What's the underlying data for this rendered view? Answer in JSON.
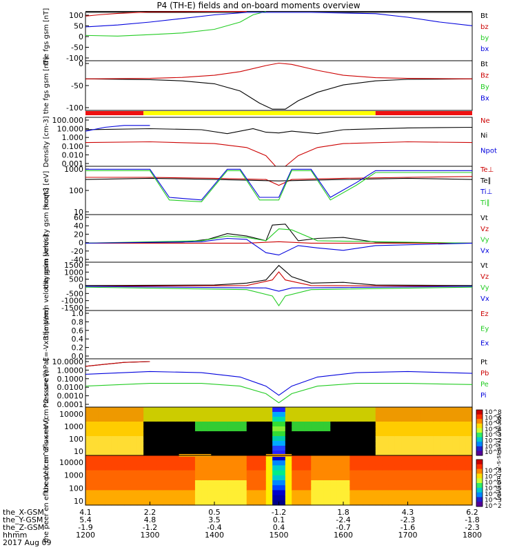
{
  "title": "P4 (TH-E) fields and on-board moments overview",
  "date": "2017 Aug 09",
  "colors": {
    "black": "#000000",
    "red": "#cc0000",
    "green": "#22cc22",
    "blue": "#0000dd"
  },
  "chart_data": {
    "type": "line",
    "x_time_labels": [
      "1200",
      "1300",
      "1400",
      "1500",
      "1600",
      "1700",
      "1800"
    ],
    "x_tick_rows": [
      {
        "name": "the_X-GSM",
        "values": [
          "4.1",
          "2.2",
          "0.5",
          "-1.2",
          "1.8",
          "4.3",
          "6.2"
        ]
      },
      {
        "name": "the_Y-GSM",
        "values": [
          "5.4",
          "4.8",
          "3.5",
          "0.1",
          "-2.4",
          "-2.3",
          "-1.8"
        ]
      },
      {
        "name": "the_Z-GSM",
        "values": [
          "-1.9",
          "-1.2",
          "-0.4",
          "0.4",
          "-0.7",
          "-1.6",
          "-2.3"
        ]
      },
      {
        "name": "hhmm",
        "values": [
          "1200",
          "1300",
          "1400",
          "1500",
          "1600",
          "1700",
          "1800"
        ]
      }
    ],
    "panels": [
      {
        "ylabel": "the fgs gsm [nT]",
        "yticks": [
          "100",
          "50",
          "0",
          "-50",
          "-100"
        ],
        "legend": [
          {
            "text": "Bt",
            "color": "#000000"
          },
          {
            "text": "bz",
            "color": "#cc0000"
          },
          {
            "text": "by",
            "color": "#22cc22"
          },
          {
            "text": "bx",
            "color": "#0000dd"
          }
        ],
        "series": [
          {
            "name": "Bt",
            "color": "#000000",
            "x": [
              1200,
              1300,
              1400,
              1450,
              1500,
              1550,
              1600,
              1700,
              1800
            ],
            "y": [
              104,
              104,
              104,
              104,
              104,
              104,
              104,
              104,
              104
            ]
          },
          {
            "name": "bz",
            "color": "#cc0000",
            "x": [
              1200,
              1220,
              1250,
              1300,
              1400,
              1450
            ],
            "y": [
              85,
              90,
              96,
              102,
              104,
              104
            ]
          },
          {
            "name": "by",
            "color": "#22cc22",
            "x": [
              1200,
              1250,
              1300,
              1350,
              1400,
              1440,
              1460,
              1480
            ],
            "y": [
              5,
              2,
              8,
              15,
              30,
              60,
              90,
              104
            ]
          },
          {
            "name": "bx",
            "color": "#0000dd",
            "x": [
              1200,
              1250,
              1300,
              1350,
              1400,
              1450,
              1550,
              1650,
              1700,
              1750,
              1800
            ],
            "y": [
              40,
              48,
              60,
              75,
              90,
              100,
              100,
              95,
              80,
              60,
              45
            ]
          }
        ]
      },
      {
        "ylabel": "the fgs gsm [nT]",
        "yticks": [
          "0",
          "-50",
          "-100"
        ],
        "legend": [
          {
            "text": "Bt",
            "color": "#000000"
          },
          {
            "text": "Bz",
            "color": "#cc0000"
          },
          {
            "text": "By",
            "color": "#22cc22"
          },
          {
            "text": "Bx",
            "color": "#0000dd"
          }
        ],
        "series": [
          {
            "name": "Bt",
            "color": "#000000",
            "x": [
              1200,
              1300,
              1350,
              1400,
              1440,
              1470,
              1490,
              1510,
              1530,
              1560,
              1600,
              1650,
              1700,
              1800
            ],
            "y": [
              0,
              -3,
              -8,
              -20,
              -50,
              -100,
              -125,
              -125,
              -90,
              -55,
              -25,
              -8,
              -2,
              0
            ]
          },
          {
            "name": "Bz",
            "color": "#cc0000",
            "x": [
              1200,
              1300,
              1350,
              1400,
              1440,
              1480,
              1500,
              1520,
              1560,
              1600,
              1650,
              1700,
              1800
            ],
            "y": [
              0,
              2,
              6,
              15,
              30,
              55,
              65,
              60,
              35,
              15,
              5,
              2,
              0
            ]
          }
        ]
      },
      {
        "ylabel": "Density [cm-3]",
        "yticks": [
          "100.000",
          "10.000",
          "1.000",
          "0.100",
          "0.010",
          "0.001"
        ],
        "ylog": true,
        "legend": [
          {
            "text": "Ne",
            "color": "#cc0000"
          },
          {
            "text": "Ni",
            "color": "#000000"
          },
          {
            "text": "Npot",
            "color": "#0000dd"
          }
        ],
        "series": [
          {
            "name": "Ne",
            "color": "#cc0000",
            "x": [
              1200,
              1300,
              1400,
              1450,
              1480,
              1495,
              1510,
              1530,
              1560,
              1600,
              1700,
              1800
            ],
            "y": [
              0.8,
              1.0,
              0.6,
              0.2,
              0.02,
              0.001,
              0.001,
              0.02,
              0.2,
              0.6,
              1.0,
              0.8
            ]
          },
          {
            "name": "Ni",
            "color": "#000000",
            "x": [
              1200,
              1300,
              1380,
              1420,
              1460,
              1480,
              1500,
              1520,
              1560,
              1600,
              1700,
              1800
            ],
            "y": [
              30,
              40,
              30,
              10,
              40,
              15,
              12,
              20,
              10,
              30,
              50,
              60
            ]
          },
          {
            "name": "Npot",
            "color": "#0000dd",
            "x": [
              1200,
              1230,
              1260,
              1300
            ],
            "y": [
              20,
              60,
              100,
              100
            ]
          }
        ]
      },
      {
        "ylabel": "moqt3 [eV]",
        "yticks": [
          "1000",
          "100",
          "10"
        ],
        "ylog": true,
        "legend": [
          {
            "text": "Te⊥",
            "color": "#cc0000"
          },
          {
            "text": "Te∥",
            "color": "#000000"
          },
          {
            "text": "Ti⊥",
            "color": "#0000dd"
          },
          {
            "text": "Ti∥",
            "color": "#22cc22"
          }
        ],
        "series": [
          {
            "name": "Te⊥",
            "color": "#cc0000",
            "x": [
              1200,
              1300,
              1400,
              1480,
              1500,
              1520,
              1600,
              1700,
              1800
            ],
            "y": [
              700,
              700,
              600,
              500,
              200,
              500,
              600,
              700,
              800
            ]
          },
          {
            "name": "Te∥",
            "color": "#000000",
            "x": [
              1200,
              1300,
              1400,
              1500,
              1600,
              1700,
              1800
            ],
            "y": [
              500,
              600,
              500,
              400,
              500,
              600,
              500
            ]
          },
          {
            "name": "Ti⊥",
            "color": "#0000dd",
            "x": [
              1200,
              1270,
              1300,
              1330,
              1380,
              1420,
              1440,
              1470,
              1500,
              1520,
              1550,
              1580,
              1620,
              1650,
              1800
            ],
            "y": [
              2500,
              2500,
              2500,
              30,
              20,
              2500,
              2500,
              30,
              30,
              2500,
              2500,
              30,
              300,
              2000,
              2000
            ]
          },
          {
            "name": "Ti∥",
            "color": "#22cc22",
            "x": [
              1200,
              1270,
              1300,
              1330,
              1380,
              1420,
              1440,
              1470,
              1500,
              1520,
              1550,
              1580,
              1620,
              1650,
              1800
            ],
            "y": [
              2000,
              2000,
              2000,
              20,
              15,
              2000,
              2000,
              20,
              20,
              2000,
              2000,
              20,
              200,
              1500,
              1500
            ]
          }
        ]
      },
      {
        "ylabel": "the peim velocity gsm [km/s]",
        "yticks": [
          "60",
          "40",
          "20",
          "0",
          "-20",
          "-40"
        ],
        "legend": [
          {
            "text": "Vt",
            "color": "#000000"
          },
          {
            "text": "Vz",
            "color": "#cc0000"
          },
          {
            "text": "Vy",
            "color": "#22cc22"
          },
          {
            "text": "Vx",
            "color": "#0000dd"
          }
        ],
        "series": [
          {
            "name": "Vt",
            "color": "#000000",
            "x": [
              1200,
              1350,
              1390,
              1420,
              1450,
              1480,
              1490,
              1510,
              1530,
              1560,
              1600,
              1650,
              1800
            ],
            "y": [
              0,
              2,
              8,
              20,
              15,
              5,
              38,
              40,
              5,
              10,
              12,
              2,
              0
            ]
          },
          {
            "name": "Vz",
            "color": "#cc0000",
            "x": [
              1200,
              1450,
              1500,
              1550,
              1800
            ],
            "y": [
              0,
              0,
              3,
              0,
              0
            ]
          },
          {
            "name": "Vy",
            "color": "#22cc22",
            "x": [
              1200,
              1380,
              1420,
              1450,
              1480,
              1500,
              1520,
              1560,
              1800
            ],
            "y": [
              0,
              5,
              15,
              12,
              5,
              30,
              28,
              5,
              0
            ]
          },
          {
            "name": "Vx",
            "color": "#0000dd",
            "x": [
              1200,
              1380,
              1420,
              1450,
              1480,
              1500,
              1530,
              1560,
              1600,
              1650,
              1800
            ],
            "y": [
              0,
              3,
              10,
              8,
              -20,
              -25,
              -5,
              -10,
              -15,
              -5,
              0
            ]
          }
        ]
      },
      {
        "ylabel": "the peem velocity gsm [km/s]",
        "yticks": [
          "1500",
          "1000",
          "500",
          "0",
          "-500",
          "-1000",
          "-1500"
        ],
        "legend": [
          {
            "text": "Vt",
            "color": "#000000"
          },
          {
            "text": "Vz",
            "color": "#cc0000"
          },
          {
            "text": "Vy",
            "color": "#22cc22"
          },
          {
            "text": "Vx",
            "color": "#0000dd"
          }
        ],
        "series": [
          {
            "name": "Vt",
            "color": "#000000",
            "x": [
              1200,
              1400,
              1450,
              1480,
              1500,
              1520,
              1550,
              1600,
              1650,
              1800
            ],
            "y": [
              50,
              80,
              200,
              400,
              1300,
              600,
              200,
              250,
              80,
              50
            ]
          },
          {
            "name": "Vz",
            "color": "#cc0000",
            "x": [
              1200,
              1450,
              1490,
              1500,
              1510,
              1550,
              1800
            ],
            "y": [
              0,
              50,
              400,
              900,
              400,
              50,
              0
            ]
          },
          {
            "name": "Vy",
            "color": "#22cc22",
            "x": [
              1200,
              1450,
              1490,
              1500,
              1510,
              1550,
              1800
            ],
            "y": [
              -50,
              -200,
              -600,
              -1200,
              -600,
              -200,
              -50
            ]
          },
          {
            "name": "Vx",
            "color": "#0000dd",
            "x": [
              1200,
              1480,
              1500,
              1520,
              1800
            ],
            "y": [
              0,
              -100,
              -300,
              -100,
              0
            ]
          }
        ]
      },
      {
        "ylabel": "E=-VxB [mV/m]",
        "yticks": [
          "1.0",
          "0.8",
          "0.6",
          "0.4",
          "0.2",
          "0.0"
        ],
        "legend": [
          {
            "text": "Ez",
            "color": "#cc0000"
          },
          {
            "text": "Ey",
            "color": "#22cc22"
          },
          {
            "text": "Ex",
            "color": "#0000dd"
          }
        ],
        "series": []
      },
      {
        "ylabel": "Pressure [nPa]",
        "yticks": [
          "10.0000",
          "1.0000",
          "0.1000",
          "0.0100",
          "0.0010",
          "0.0001"
        ],
        "ylog": true,
        "legend": [
          {
            "text": "Pt",
            "color": "#000000"
          },
          {
            "text": "Pb",
            "color": "#cc0000"
          },
          {
            "text": "Pe",
            "color": "#22cc22"
          },
          {
            "text": "Pi",
            "color": "#0000dd"
          }
        ],
        "series": [
          {
            "name": "Pt",
            "color": "#000000",
            "x": [
              1200,
              1230,
              1260,
              1300
            ],
            "y": [
              3,
              5,
              8,
              10
            ]
          },
          {
            "name": "Pb",
            "color": "#cc0000",
            "x": [
              1200,
              1230,
              1260,
              1300
            ],
            "y": [
              3,
              5,
              8,
              10
            ]
          },
          {
            "name": "Pe",
            "color": "#22cc22",
            "x": [
              1200,
              1300,
              1380,
              1440,
              1480,
              1500,
              1520,
              1560,
              1620,
              1700,
              1800
            ],
            "y": [
              0.02,
              0.04,
              0.04,
              0.02,
              0.003,
              0.0003,
              0.003,
              0.02,
              0.04,
              0.04,
              0.03
            ]
          },
          {
            "name": "Pi",
            "color": "#0000dd",
            "x": [
              1200,
              1300,
              1380,
              1440,
              1480,
              1500,
              1520,
              1560,
              1620,
              1700,
              1800
            ],
            "y": [
              0.4,
              0.8,
              0.6,
              0.2,
              0.02,
              0.002,
              0.02,
              0.2,
              0.6,
              0.8,
              0.5
            ]
          }
        ]
      }
    ],
    "spectrograms": [
      {
        "ylabel": "the peir en eflux eV (cm^2-s-sr-eV)",
        "yticks": [
          "10000",
          "1000",
          "100",
          "10"
        ]
      },
      {
        "ylabel": "the peer en eflux eV (cm^2-s-sr-eV)",
        "yticks": [
          "10000",
          "1000",
          "100",
          "10"
        ]
      }
    ],
    "colorbar": {
      "label": "[eV/(cm^2-s-sr-eV)] (All Qs)",
      "ticks_top": [
        "10^8",
        "10^6",
        "10^5",
        "10^4",
        "10^3",
        "10^2",
        "10^1",
        "10^0"
      ],
      "ticks_bottom": [
        "10^8",
        "10^7",
        "10^6",
        "10^5",
        "10^4",
        "10^3",
        "10^2"
      ]
    }
  }
}
